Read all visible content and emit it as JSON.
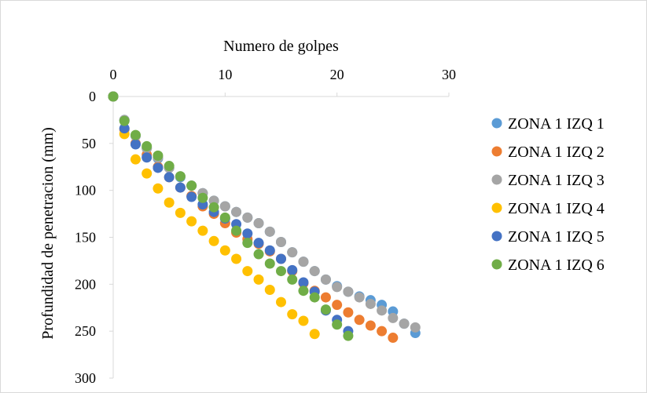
{
  "chart_data": {
    "type": "scatter",
    "xlabel": "Numero de golpes",
    "ylabel": "Profundidad de penetracion (mm)",
    "xlim": [
      0,
      30
    ],
    "ylim": [
      0,
      300
    ],
    "x_axis_position": "top",
    "y_reversed": true,
    "x_ticks": [
      "0",
      "10",
      "20",
      "30"
    ],
    "y_ticks": [
      "0",
      "50",
      "100",
      "150",
      "200",
      "250",
      "300"
    ],
    "grid": false,
    "legend_position": "right",
    "series": [
      {
        "name": "ZONA 1 IZQ 1",
        "color": "#5B9BD5",
        "x": [
          0,
          1,
          2,
          3,
          4,
          5,
          6,
          7,
          8,
          9,
          10,
          11,
          12,
          13,
          14,
          15,
          16,
          17,
          18,
          19,
          20,
          21,
          22,
          23,
          24,
          25,
          26,
          27
        ],
        "y": [
          0,
          25,
          42,
          55,
          66,
          76,
          86,
          95,
          103,
          111,
          117,
          123,
          129,
          135,
          144,
          155,
          166,
          176,
          186,
          195,
          202,
          208,
          213,
          217,
          222,
          229,
          242,
          252
        ]
      },
      {
        "name": "ZONA 1 IZQ 2",
        "color": "#ED7D31",
        "x": [
          0,
          1,
          2,
          3,
          4,
          5,
          6,
          7,
          8,
          9,
          10,
          11,
          12,
          13,
          14,
          15,
          16,
          17,
          18,
          19,
          20,
          21,
          22,
          23,
          24,
          25
        ],
        "y": [
          0,
          35,
          50,
          62,
          75,
          86,
          97,
          106,
          117,
          125,
          135,
          145,
          152,
          157,
          165,
          173,
          186,
          199,
          207,
          214,
          222,
          230,
          238,
          244,
          250,
          257
        ]
      },
      {
        "name": "ZONA 1 IZQ 3",
        "color": "#A5A5A5",
        "x": [
          0,
          1,
          2,
          3,
          4,
          5,
          6,
          7,
          8,
          9,
          10,
          11,
          12,
          13,
          14,
          15,
          16,
          17,
          18,
          19,
          20,
          21,
          22,
          23,
          24,
          25,
          26,
          27
        ],
        "y": [
          0,
          25,
          42,
          55,
          65,
          76,
          85,
          95,
          103,
          111,
          117,
          123,
          129,
          135,
          144,
          155,
          166,
          176,
          186,
          195,
          203,
          208,
          214,
          221,
          228,
          236,
          242,
          246
        ]
      },
      {
        "name": "ZONA 1 IZQ 4",
        "color": "#FFC000",
        "x": [
          0,
          1,
          2,
          3,
          4,
          5,
          6,
          7,
          8,
          9,
          10,
          11,
          12,
          13,
          14,
          15,
          16,
          17,
          18
        ],
        "y": [
          0,
          40,
          67,
          82,
          98,
          113,
          124,
          133,
          143,
          154,
          164,
          173,
          186,
          195,
          206,
          219,
          232,
          239,
          253
        ]
      },
      {
        "name": "ZONA 1 IZQ 5",
        "color": "#4472C4",
        "x": [
          0,
          1,
          2,
          3,
          4,
          5,
          6,
          7,
          8,
          9,
          10,
          11,
          12,
          13,
          14,
          15,
          16,
          17,
          18,
          19,
          20,
          21
        ],
        "y": [
          0,
          34,
          51,
          65,
          76,
          86,
          97,
          107,
          115,
          123,
          130,
          136,
          146,
          156,
          164,
          173,
          185,
          198,
          208,
          228,
          238,
          250
        ]
      },
      {
        "name": "ZONA 1 IZQ 6",
        "color": "#70AD47",
        "x": [
          0,
          1,
          2,
          3,
          4,
          5,
          6,
          7,
          8,
          9,
          10,
          11,
          12,
          13,
          14,
          15,
          16,
          17,
          18,
          19,
          20,
          21
        ],
        "y": [
          0,
          26,
          41,
          53,
          63,
          74,
          85,
          95,
          108,
          118,
          129,
          143,
          156,
          168,
          178,
          186,
          195,
          207,
          214,
          227,
          243,
          255
        ]
      }
    ]
  }
}
